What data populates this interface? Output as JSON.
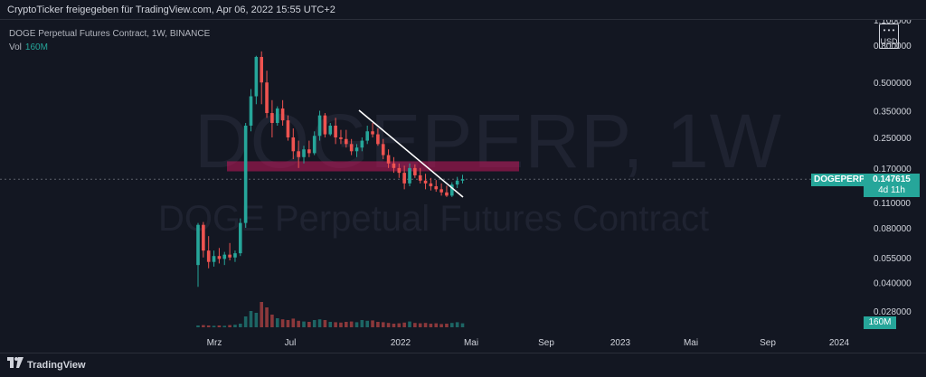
{
  "header": {
    "title": "CryptoTicker freigegeben für TradingView.com, Apr 06, 2022 15:55 UTC+2"
  },
  "legend": {
    "symbol_line": "DOGE Perpetual Futures Contract, 1W, BINANCE",
    "vol_label": "Vol",
    "vol_value": "160M"
  },
  "watermark": {
    "symbol": "DOGEPERP, 1W",
    "description": "DOGE Perpetual Futures Contract"
  },
  "currency": "USD",
  "price_tag": {
    "symbol": "DOGEPERP",
    "price": "0.147615",
    "countdown": "4d 11h"
  },
  "volume_tag": "160M",
  "footer": {
    "brand": "TradingView"
  },
  "colors": {
    "up": "#26a69a",
    "down": "#ef5350",
    "background": "#131722"
  },
  "chart_data": {
    "type": "candlestick",
    "timeframe": "1W",
    "price_scale": "log",
    "y_ticks": [
      "1.100000",
      "0.800000",
      "0.500000",
      "0.350000",
      "0.250000",
      "0.170000",
      "0.110000",
      "0.080000",
      "0.055000",
      "0.040000",
      "0.028000"
    ],
    "x_ticks": [
      "Mrz",
      "Jul",
      "2022",
      "Mai",
      "Sep",
      "2023",
      "Mai",
      "Sep",
      "2024"
    ],
    "candles": [
      {
        "o": 0.05,
        "h": 0.085,
        "l": 0.038,
        "c": 0.083
      },
      {
        "o": 0.083,
        "h": 0.086,
        "l": 0.055,
        "c": 0.06
      },
      {
        "o": 0.06,
        "h": 0.072,
        "l": 0.048,
        "c": 0.052
      },
      {
        "o": 0.052,
        "h": 0.06,
        "l": 0.049,
        "c": 0.056
      },
      {
        "o": 0.056,
        "h": 0.062,
        "l": 0.051,
        "c": 0.054
      },
      {
        "o": 0.054,
        "h": 0.059,
        "l": 0.05,
        "c": 0.057
      },
      {
        "o": 0.057,
        "h": 0.066,
        "l": 0.053,
        "c": 0.055
      },
      {
        "o": 0.055,
        "h": 0.06,
        "l": 0.052,
        "c": 0.058
      },
      {
        "o": 0.058,
        "h": 0.09,
        "l": 0.056,
        "c": 0.085
      },
      {
        "o": 0.085,
        "h": 0.3,
        "l": 0.08,
        "c": 0.29
      },
      {
        "o": 0.29,
        "h": 0.46,
        "l": 0.27,
        "c": 0.42
      },
      {
        "o": 0.42,
        "h": 0.7,
        "l": 0.38,
        "c": 0.69
      },
      {
        "o": 0.69,
        "h": 0.74,
        "l": 0.38,
        "c": 0.5
      },
      {
        "o": 0.5,
        "h": 0.58,
        "l": 0.32,
        "c": 0.34
      },
      {
        "o": 0.34,
        "h": 0.4,
        "l": 0.25,
        "c": 0.3
      },
      {
        "o": 0.3,
        "h": 0.37,
        "l": 0.29,
        "c": 0.36
      },
      {
        "o": 0.36,
        "h": 0.4,
        "l": 0.29,
        "c": 0.31
      },
      {
        "o": 0.31,
        "h": 0.33,
        "l": 0.24,
        "c": 0.25
      },
      {
        "o": 0.25,
        "h": 0.28,
        "l": 0.19,
        "c": 0.21
      },
      {
        "o": 0.21,
        "h": 0.24,
        "l": 0.17,
        "c": 0.195
      },
      {
        "o": 0.195,
        "h": 0.225,
        "l": 0.18,
        "c": 0.215
      },
      {
        "o": 0.215,
        "h": 0.24,
        "l": 0.195,
        "c": 0.205
      },
      {
        "o": 0.205,
        "h": 0.27,
        "l": 0.2,
        "c": 0.255
      },
      {
        "o": 0.255,
        "h": 0.35,
        "l": 0.24,
        "c": 0.33
      },
      {
        "o": 0.33,
        "h": 0.34,
        "l": 0.25,
        "c": 0.26
      },
      {
        "o": 0.26,
        "h": 0.3,
        "l": 0.255,
        "c": 0.29
      },
      {
        "o": 0.29,
        "h": 0.32,
        "l": 0.23,
        "c": 0.25
      },
      {
        "o": 0.25,
        "h": 0.275,
        "l": 0.23,
        "c": 0.245
      },
      {
        "o": 0.245,
        "h": 0.275,
        "l": 0.22,
        "c": 0.23
      },
      {
        "o": 0.23,
        "h": 0.245,
        "l": 0.2,
        "c": 0.21
      },
      {
        "o": 0.21,
        "h": 0.23,
        "l": 0.195,
        "c": 0.22
      },
      {
        "o": 0.22,
        "h": 0.25,
        "l": 0.21,
        "c": 0.24
      },
      {
        "o": 0.24,
        "h": 0.29,
        "l": 0.23,
        "c": 0.27
      },
      {
        "o": 0.27,
        "h": 0.3,
        "l": 0.25,
        "c": 0.26
      },
      {
        "o": 0.26,
        "h": 0.28,
        "l": 0.225,
        "c": 0.23
      },
      {
        "o": 0.23,
        "h": 0.245,
        "l": 0.19,
        "c": 0.2
      },
      {
        "o": 0.2,
        "h": 0.215,
        "l": 0.17,
        "c": 0.18
      },
      {
        "o": 0.18,
        "h": 0.195,
        "l": 0.16,
        "c": 0.17
      },
      {
        "o": 0.17,
        "h": 0.18,
        "l": 0.15,
        "c": 0.16
      },
      {
        "o": 0.16,
        "h": 0.175,
        "l": 0.13,
        "c": 0.14
      },
      {
        "o": 0.14,
        "h": 0.18,
        "l": 0.135,
        "c": 0.17
      },
      {
        "o": 0.17,
        "h": 0.178,
        "l": 0.15,
        "c": 0.155
      },
      {
        "o": 0.155,
        "h": 0.17,
        "l": 0.14,
        "c": 0.145
      },
      {
        "o": 0.145,
        "h": 0.158,
        "l": 0.13,
        "c": 0.14
      },
      {
        "o": 0.14,
        "h": 0.15,
        "l": 0.128,
        "c": 0.135
      },
      {
        "o": 0.135,
        "h": 0.146,
        "l": 0.126,
        "c": 0.13
      },
      {
        "o": 0.13,
        "h": 0.14,
        "l": 0.12,
        "c": 0.125
      },
      {
        "o": 0.125,
        "h": 0.136,
        "l": 0.118,
        "c": 0.12
      },
      {
        "o": 0.12,
        "h": 0.142,
        "l": 0.118,
        "c": 0.138
      },
      {
        "o": 0.138,
        "h": 0.152,
        "l": 0.132,
        "c": 0.145
      },
      {
        "o": 0.145,
        "h": 0.156,
        "l": 0.14,
        "c": 0.1476
      }
    ],
    "volumes": [
      0.05,
      0.06,
      0.05,
      0.04,
      0.05,
      0.04,
      0.06,
      0.07,
      0.1,
      0.3,
      0.45,
      0.4,
      0.7,
      0.55,
      0.35,
      0.25,
      0.22,
      0.2,
      0.24,
      0.18,
      0.16,
      0.15,
      0.2,
      0.22,
      0.2,
      0.15,
      0.14,
      0.13,
      0.15,
      0.16,
      0.14,
      0.2,
      0.18,
      0.19,
      0.15,
      0.14,
      0.12,
      0.1,
      0.11,
      0.13,
      0.16,
      0.12,
      0.11,
      0.12,
      0.1,
      0.11,
      0.09,
      0.1,
      0.12,
      0.14,
      0.11
    ]
  }
}
